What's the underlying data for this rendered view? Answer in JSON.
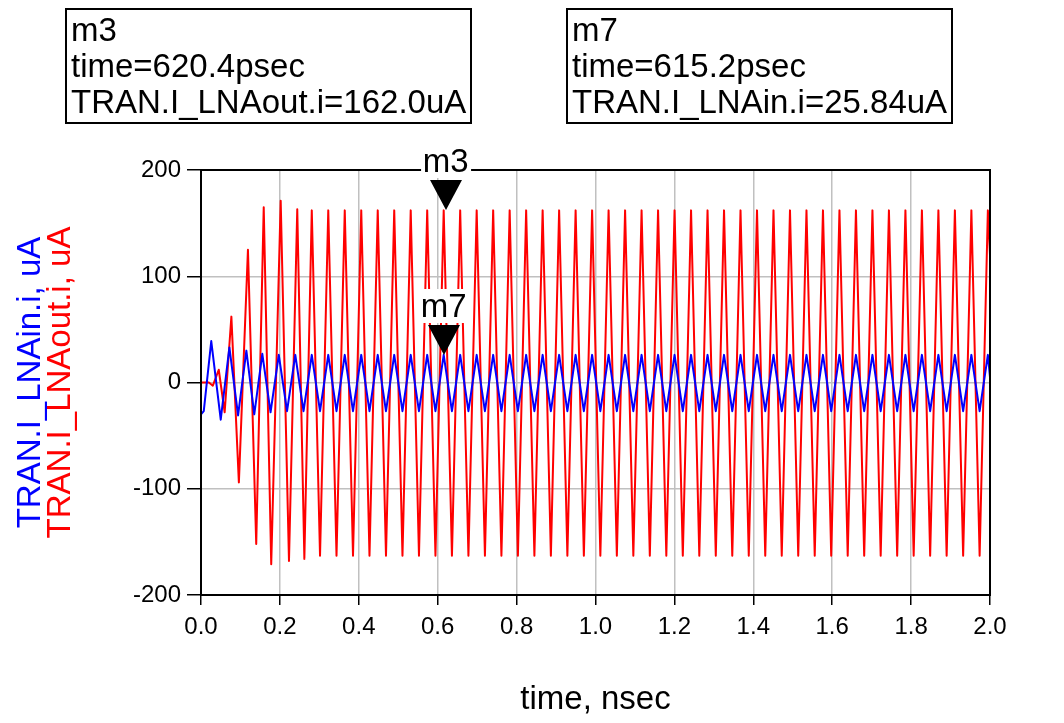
{
  "chart_data": {
    "type": "line",
    "xlabel": "time, nsec",
    "xlim": [
      0,
      2
    ],
    "ylim": [
      -200,
      200
    ],
    "xticks": [
      {
        "value": 0,
        "label": "0.0"
      },
      {
        "value": 0.2,
        "label": "0.2"
      },
      {
        "value": 0.4,
        "label": "0.4"
      },
      {
        "value": 0.6,
        "label": "0.6"
      },
      {
        "value": 0.8,
        "label": "0.8"
      },
      {
        "value": 1,
        "label": "1.0"
      },
      {
        "value": 1.2,
        "label": "1.2"
      },
      {
        "value": 1.4,
        "label": "1.4"
      },
      {
        "value": 1.6,
        "label": "1.6"
      },
      {
        "value": 1.8,
        "label": "1.8"
      },
      {
        "value": 2,
        "label": "2.0"
      }
    ],
    "yticks": [
      -200,
      -100,
      0,
      100,
      200
    ],
    "grid": true,
    "legend": false,
    "marker": "none",
    "line_style": "solid",
    "series": [
      {
        "name": "TRAN.I_LNAout.i, uA",
        "color": "#ff0000",
        "x": [
          0,
          0.02,
          0.03,
          0.045,
          0.06,
          0.077,
          0.096,
          0.119,
          0.14,
          0.159,
          0.178,
          0.202,
          0.223,
          0.244,
          0.262,
          0.2808,
          0.3017,
          0.3226,
          0.3435,
          0.3644,
          0.3853,
          0.4062,
          0.4271,
          0.448,
          0.4689,
          0.4898,
          0.5107,
          0.5316,
          0.5525,
          0.5734,
          0.5943,
          0.6152,
          0.6361,
          0.657,
          0.6779,
          0.6988,
          0.7197,
          0.7406,
          0.7615,
          0.7824,
          0.8033,
          0.8242,
          0.8451,
          0.866,
          0.8869,
          0.9078,
          0.9287,
          0.9496,
          0.9705,
          0.9914,
          1.0123,
          1.0332,
          1.0541,
          1.075,
          1.0959,
          1.1168,
          1.1377,
          1.1586,
          1.1795,
          1.2004,
          1.2213,
          1.2422,
          1.2631,
          1.284,
          1.3049,
          1.3258,
          1.3467,
          1.3676,
          1.3885,
          1.4094,
          1.4303,
          1.4512,
          1.4721,
          1.493,
          1.5139,
          1.5348,
          1.5557,
          1.5766,
          1.5975,
          1.6184,
          1.6393,
          1.6602,
          1.6811,
          1.702,
          1.7229,
          1.7438,
          1.7647,
          1.7856,
          1.8065,
          1.8274,
          1.8483,
          1.8692,
          1.8901,
          1.911,
          1.9319,
          1.9528,
          1.9737,
          1.9946,
          2.0
        ],
        "values": [
          0,
          0,
          -3,
          12,
          -28,
          62,
          -94,
          125,
          -152,
          165,
          -171,
          171,
          -168,
          163,
          -166,
          162,
          -163,
          162,
          -163,
          162,
          -163,
          162,
          -163,
          162,
          -163,
          162,
          -163,
          162,
          -163,
          162,
          -163,
          162,
          -163,
          162,
          -163,
          162,
          -163,
          162,
          -163,
          162,
          -163,
          162,
          -163,
          162,
          -163,
          162,
          -163,
          162,
          -163,
          162,
          -163,
          162,
          -163,
          162,
          -163,
          162,
          -163,
          162,
          -163,
          162,
          -163,
          162,
          -163,
          162,
          -163,
          162,
          -163,
          162,
          -163,
          162,
          -163,
          162,
          -163,
          162,
          -163,
          162,
          -163,
          162,
          -163,
          162,
          -163,
          162,
          -163,
          162,
          -163,
          162,
          -163,
          162,
          -163,
          162,
          -163,
          162,
          -163,
          162,
          -163,
          162,
          -163,
          162,
          120
        ]
      },
      {
        "name": "TRAN.I_LNAin.i, uA",
        "color": "#0000ff",
        "x": [
          0,
          0.007,
          0.026,
          0.05,
          0.072,
          0.094,
          0.115,
          0.135,
          0.1554,
          0.1763,
          0.1972,
          0.2181,
          0.239,
          0.2599,
          0.2808,
          0.3017,
          0.3226,
          0.3435,
          0.3644,
          0.3853,
          0.4062,
          0.4271,
          0.448,
          0.4689,
          0.4898,
          0.5107,
          0.5316,
          0.5525,
          0.5734,
          0.5943,
          0.6152,
          0.6361,
          0.657,
          0.6779,
          0.6988,
          0.7197,
          0.7406,
          0.7615,
          0.7824,
          0.8033,
          0.8242,
          0.8451,
          0.866,
          0.8869,
          0.9078,
          0.9287,
          0.9496,
          0.9705,
          0.9914,
          1.0123,
          1.0332,
          1.0541,
          1.075,
          1.0959,
          1.1168,
          1.1377,
          1.1586,
          1.1795,
          1.2004,
          1.2213,
          1.2422,
          1.2631,
          1.284,
          1.3049,
          1.3258,
          1.3467,
          1.3676,
          1.3885,
          1.4094,
          1.4303,
          1.4512,
          1.4721,
          1.493,
          1.5139,
          1.5348,
          1.5557,
          1.5766,
          1.5975,
          1.6184,
          1.6393,
          1.6602,
          1.6811,
          1.702,
          1.7229,
          1.7438,
          1.7647,
          1.7856,
          1.8065,
          1.8274,
          1.8483,
          1.8692,
          1.8901,
          1.911,
          1.9319,
          1.9528,
          1.9737,
          1.9946,
          2.0
        ],
        "values": [
          -30,
          -27,
          39,
          -35,
          33,
          -31,
          30,
          -30,
          27,
          -28,
          26,
          -27,
          26,
          -27,
          26,
          -27,
          26,
          -27,
          26,
          -27,
          26,
          -27,
          26,
          -27,
          26,
          -27,
          26,
          -27,
          26,
          -27,
          26,
          -27,
          26,
          -27,
          26,
          -27,
          26,
          -27,
          26,
          -27,
          26,
          -27,
          26,
          -27,
          26,
          -27,
          26,
          -27,
          26,
          -27,
          26,
          -27,
          26,
          -27,
          26,
          -27,
          26,
          -27,
          26,
          -27,
          26,
          -27,
          26,
          -27,
          26,
          -27,
          26,
          -27,
          26,
          -27,
          26,
          -27,
          26,
          -27,
          26,
          -27,
          26,
          -27,
          26,
          -27,
          26,
          -27,
          26,
          -27,
          26,
          -27,
          26,
          -27,
          26,
          -27,
          26,
          -27,
          26,
          -27,
          26,
          -27,
          26,
          5
        ]
      }
    ],
    "annotations": [
      {
        "text": "m3",
        "x": 0.6204,
        "y": 162
      },
      {
        "text": "m7",
        "x": 0.6152,
        "y": 25.84
      },
      "m3\ntime=620.4psec\nTRAN.I_LNAout.i=162.0uA",
      "m7\ntime=615.2psec\nTRAN.I_LNAin.i=25.84uA"
    ]
  }
}
